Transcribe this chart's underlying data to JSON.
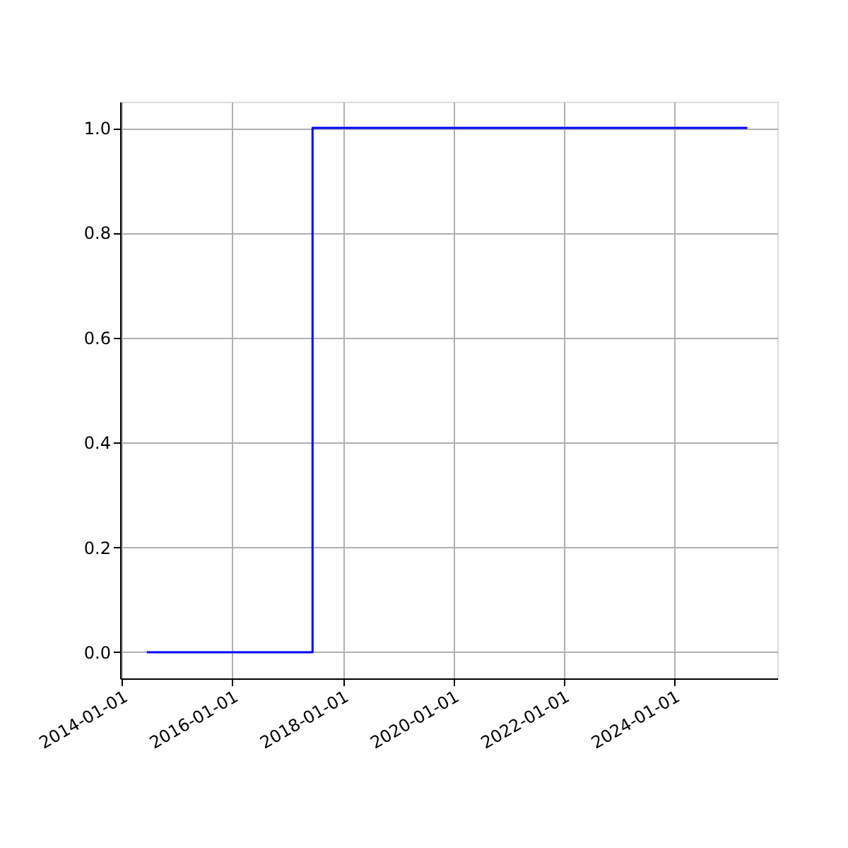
{
  "chart_data": {
    "type": "step",
    "x": [
      "2014-06-15",
      "2017-06-15",
      "2025-05-01"
    ],
    "series": [
      {
        "color": "#0000ff",
        "values": [
          0,
          1,
          1
        ]
      }
    ],
    "xlim": [
      "2013-12-20",
      "2025-11-15"
    ],
    "xticks": [
      "2014-01-01",
      "2016-01-01",
      "2018-01-01",
      "2020-01-01",
      "2022-01-01",
      "2024-01-01"
    ],
    "ylim": [
      -0.05,
      1.05
    ],
    "yticks": [
      {
        "value": 0,
        "label": "0.0"
      },
      {
        "value": 0.2,
        "label": "0.2"
      },
      {
        "value": 0.4,
        "label": "0.4"
      },
      {
        "value": 0.6,
        "label": "0.6"
      },
      {
        "value": 0.8,
        "label": "0.8"
      },
      {
        "value": 1,
        "label": "1.0"
      }
    ],
    "grid": true,
    "marker": "none",
    "line_style": "solid"
  }
}
